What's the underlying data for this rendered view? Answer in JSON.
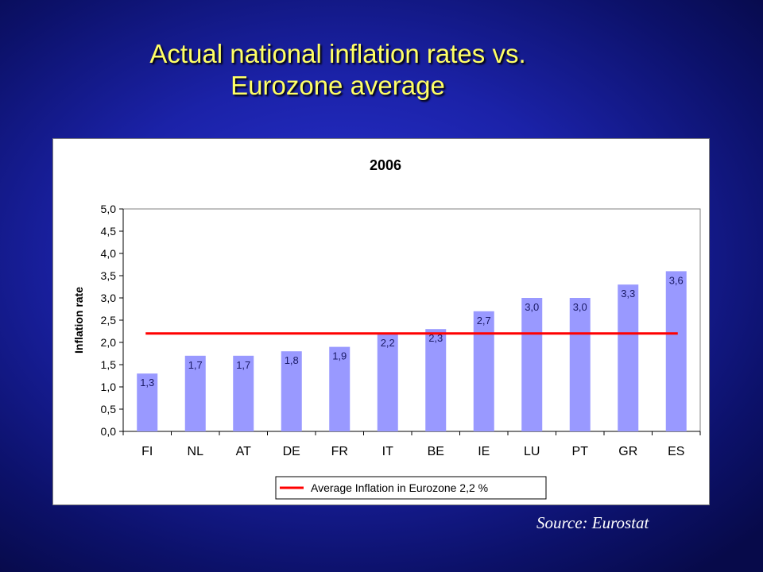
{
  "slide": {
    "title_line1": "Actual national inflation rates vs.",
    "title_line2": "Eurozone average",
    "source": "Source: Eurostat"
  },
  "colors": {
    "title": "#ffff66",
    "bar": "#9999ff",
    "average_line": "#ff0000",
    "background": "#1b22a8"
  },
  "chart_data": {
    "type": "bar",
    "title": "2006",
    "ylabel": "Inflation rate",
    "xlabel": "",
    "categories": [
      "FI",
      "NL",
      "AT",
      "DE",
      "FR",
      "IT",
      "BE",
      "IE",
      "LU",
      "PT",
      "GR",
      "ES"
    ],
    "values": [
      1.3,
      1.7,
      1.7,
      1.8,
      1.9,
      2.2,
      2.3,
      2.7,
      3.0,
      3.0,
      3.3,
      3.6
    ],
    "value_labels": [
      "1,3",
      "1,7",
      "1,7",
      "1,8",
      "1,9",
      "2,2",
      "2,3",
      "2,7",
      "3,0",
      "3,0",
      "3,3",
      "3,6"
    ],
    "ylim": [
      0,
      5
    ],
    "ytick_labels": [
      "0,0",
      "0,5",
      "1,0",
      "1,5",
      "2,0",
      "2,5",
      "3,0",
      "3,5",
      "4,0",
      "4,5",
      "5,0"
    ],
    "grid": false,
    "reference_line": {
      "name": "Average Inflation in Eurozone  2,2 %",
      "value": 2.2
    },
    "legend_position": "bottom"
  }
}
